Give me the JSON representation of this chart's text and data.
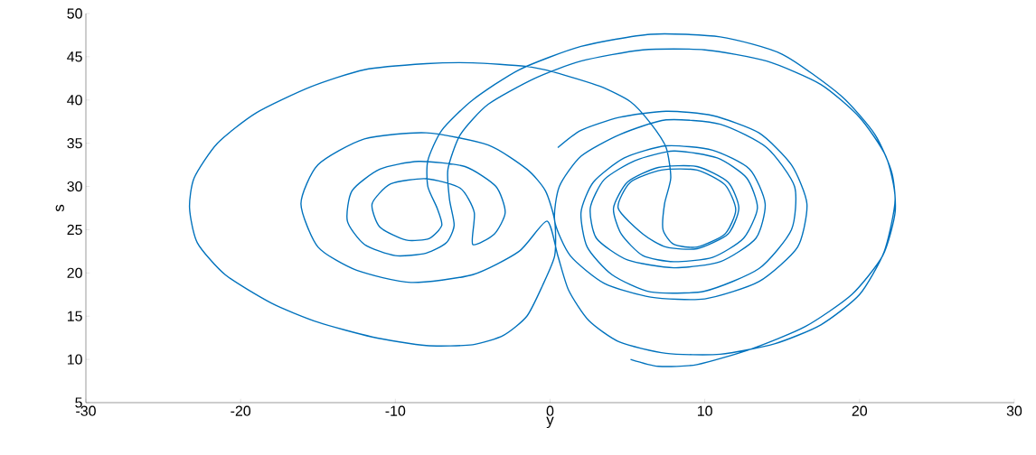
{
  "chart_data": {
    "type": "line",
    "xlabel": "y",
    "ylabel": "s",
    "xlim": [
      -30,
      30
    ],
    "ylim": [
      5,
      50
    ],
    "xticks": [
      -30,
      -20,
      -10,
      0,
      10,
      20,
      30
    ],
    "yticks": [
      5,
      10,
      15,
      20,
      25,
      30,
      35,
      40,
      45,
      50
    ],
    "series": [
      {
        "color": "#0072bd",
        "x": [
          0.5,
          2,
          4.5,
          7.5,
          10.5,
          13.5,
          15.6,
          16.6,
          16,
          13.5,
          10,
          6.5,
          3.5,
          1.3,
          0.3,
          0.6,
          2,
          4.5,
          7.5,
          11,
          14,
          15.8,
          15.6,
          13.5,
          10,
          6.5,
          4,
          2.4,
          2,
          2.8,
          4.8,
          7.5,
          10.5,
          12.9,
          13.9,
          13.3,
          11,
          8,
          5,
          3,
          2.6,
          3.5,
          5.5,
          8,
          10.8,
          12.7,
          13.4,
          12.5,
          10.5,
          8,
          6,
          4.6,
          4.1,
          5,
          7,
          9.5,
          11.5,
          12.2,
          11.5,
          9.5,
          7.5,
          6,
          4.4,
          5.2,
          7.2,
          9.5,
          11.3,
          12,
          11.3,
          9.5,
          8,
          7.3,
          7.4,
          7.8,
          7.5,
          6.5,
          5.2,
          3.2,
          0.3,
          -1.6,
          -5,
          -8,
          -12,
          -15.5,
          -19,
          -21.5,
          -23,
          -23.3,
          -22.8,
          -21,
          -18,
          -15,
          -11.5,
          -8,
          -5,
          -3,
          -1.5,
          -0.5,
          0.3,
          0.3,
          -0.3,
          -1.5,
          -4,
          -8,
          -12,
          -15,
          -16.1,
          -15,
          -12.5,
          -9,
          -5,
          -2,
          -0.2,
          0.5,
          1.2,
          2.5,
          4.5,
          7.5,
          11,
          14.5,
          17.5,
          20,
          21.6,
          22.3,
          21.7,
          20,
          17.5,
          14,
          10,
          6,
          2,
          -1,
          -4,
          -5.8,
          -6.6,
          -6.5,
          -6.2,
          -6.7,
          -8,
          -10,
          -12,
          -13.1,
          -12.8,
          -11,
          -8.5,
          -5.5,
          -3.5,
          -2.9,
          -3.6,
          -5,
          -4.9,
          -5.8,
          -8,
          -10.3,
          -11.5,
          -11,
          -9.3,
          -7.8,
          -7,
          -7.3,
          -7.9,
          -7.9,
          -7,
          -5,
          -2,
          2,
          6.5,
          11,
          15,
          18.8,
          21,
          22.1,
          22.3,
          21.5,
          19.5,
          16.5,
          13,
          9.5,
          7,
          5.2
        ],
        "values": [
          34.5,
          36.5,
          38,
          38.7,
          38.2,
          36.2,
          32.5,
          28,
          23,
          19,
          17,
          17.2,
          18.8,
          22,
          26,
          30,
          33.5,
          36,
          37.7,
          37.2,
          34.5,
          30,
          25,
          20.5,
          17.9,
          17.8,
          19.8,
          23,
          27,
          30.5,
          33.3,
          34.7,
          34.2,
          32,
          28,
          24,
          21.3,
          20.6,
          21.5,
          24,
          27.5,
          30.8,
          33,
          34.1,
          33.3,
          31,
          27.5,
          24,
          21.8,
          21.3,
          22,
          24.5,
          27.5,
          30.5,
          32.2,
          32.3,
          30.5,
          27.5,
          24.5,
          22.8,
          23,
          24.5,
          27.5,
          30.5,
          31.9,
          31.9,
          30.2,
          27.3,
          24.5,
          23,
          23.3,
          25,
          28,
          31,
          34.5,
          37.3,
          39.8,
          41.6,
          43.2,
          43.9,
          44.3,
          44.2,
          43.5,
          41.5,
          38.5,
          35,
          31,
          27.5,
          23.5,
          19.8,
          16.5,
          14.3,
          12.6,
          11.6,
          11.7,
          12.8,
          15,
          18.5,
          22,
          26,
          29.5,
          32,
          34.8,
          36.2,
          35.5,
          32.5,
          28,
          23,
          20.3,
          18.9,
          19.8,
          22.5,
          26,
          22,
          18,
          14.5,
          12,
          10.7,
          10.6,
          11.8,
          14,
          17.5,
          22.5,
          28.5,
          33.5,
          38,
          41.8,
          44.5,
          45.8,
          45.8,
          44.5,
          42.5,
          39.5,
          36,
          32,
          28.5,
          25.5,
          23.5,
          22.3,
          22,
          23.3,
          26,
          29.5,
          32,
          32.9,
          32.3,
          30,
          27,
          24.5,
          23.3,
          27,
          29.8,
          30.9,
          30.3,
          28,
          25.3,
          23.8,
          24,
          25.5,
          27.5,
          30,
          33,
          36.5,
          40,
          43.5,
          46.2,
          47.6,
          47.3,
          45.3,
          40.5,
          36,
          31.5,
          27,
          22,
          17.5,
          13.8,
          11.2,
          9.4,
          9.2,
          10
        ]
      }
    ]
  }
}
